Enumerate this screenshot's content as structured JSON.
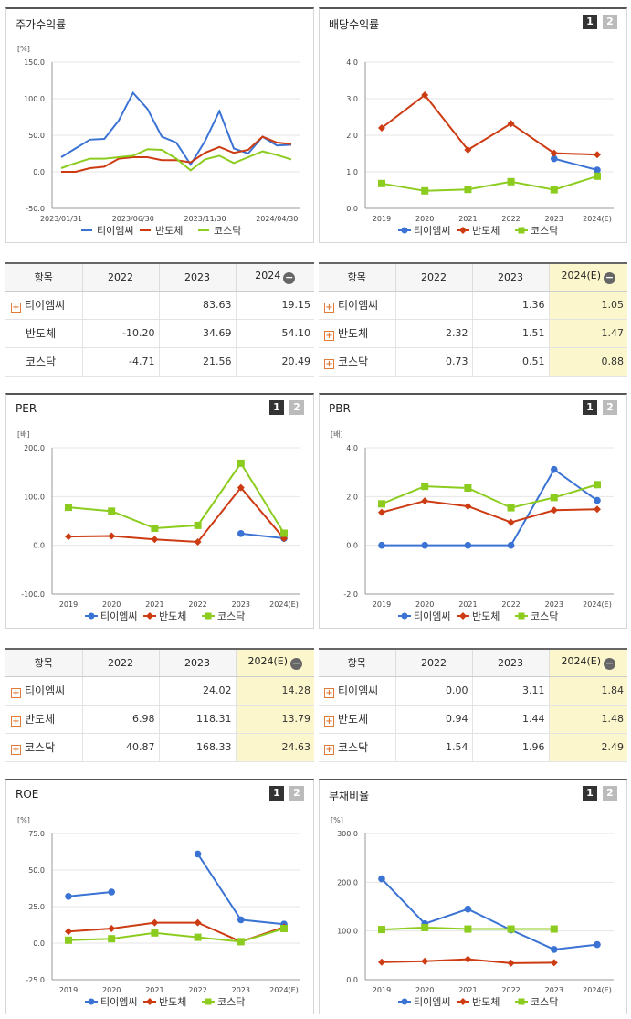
{
  "colors": {
    "timc": "#3a73d4",
    "semi": "#cc3b12",
    "kosdaq": "#8ccc1e"
  },
  "legend": [
    "티이엠씨",
    "반도체",
    "코스닥"
  ],
  "pager": [
    "1",
    "2"
  ],
  "charts": {
    "stock": {
      "title": "주가수익률",
      "unit": "[%]",
      "chart_data": {
        "type": "line",
        "x": [
          "2023/01/31",
          "2023/02/28",
          "2023/03/31",
          "2023/04/30",
          "2023/05/31",
          "2023/06/30",
          "2023/07/31",
          "2023/08/31",
          "2023/09/30",
          "2023/10/31",
          "2023/11/30",
          "2023/12/31",
          "2024/01/31",
          "2024/02/29",
          "2024/03/31",
          "2024/04/30",
          "2024/05/31"
        ],
        "xticks": [
          "2023/01/31",
          "2023/06/30",
          "2023/11/30",
          "2024/04/30"
        ],
        "ylim": [
          -50,
          150
        ],
        "yticks": [
          "-50.0",
          "0.0",
          "50.0",
          "100.0",
          "150.0"
        ],
        "series": [
          {
            "name": "티이엠씨",
            "values": [
              20,
              32,
              44,
              45,
              70,
              108,
              86,
              48,
              40,
              10,
              42,
              83,
              32,
              25,
              48,
              36,
              37
            ]
          },
          {
            "name": "반도체",
            "values": [
              0,
              0,
              5,
              7,
              18,
              20,
              20,
              16,
              16,
              13,
              26,
              34,
              26,
              30,
              48,
              40,
              38
            ]
          },
          {
            "name": "코스닥",
            "values": [
              5,
              12,
              18,
              18,
              20,
              22,
              31,
              30,
              18,
              2,
              17,
              22,
              12,
              20,
              28,
              23,
              17
            ]
          }
        ]
      }
    },
    "dividend": {
      "title": "배당수익률",
      "unit": "",
      "chart_data": {
        "type": "line",
        "x": [
          "2019",
          "2020",
          "2021",
          "2022",
          "2023",
          "2024(E)"
        ],
        "ylim": [
          0,
          4
        ],
        "yticks": [
          "0.0",
          "1.0",
          "2.0",
          "3.0",
          "4.0"
        ],
        "series": [
          {
            "name": "티이엠씨",
            "values": [
              null,
              null,
              null,
              null,
              1.36,
              1.05
            ]
          },
          {
            "name": "반도체",
            "values": [
              2.2,
              3.1,
              1.6,
              2.32,
              1.51,
              1.47
            ]
          },
          {
            "name": "코스닥",
            "values": [
              0.68,
              0.48,
              0.52,
              0.73,
              0.51,
              0.88
            ]
          }
        ]
      }
    },
    "per": {
      "title": "PER",
      "unit": "[배]",
      "chart_data": {
        "type": "line",
        "x": [
          "2019",
          "2020",
          "2021",
          "2022",
          "2023",
          "2024(E)"
        ],
        "ylim": [
          -100,
          200
        ],
        "yticks": [
          "-100.0",
          "0.0",
          "100.0",
          "200.0"
        ],
        "series": [
          {
            "name": "티이엠씨",
            "values": [
              null,
              null,
              null,
              null,
              24.02,
              14.28
            ]
          },
          {
            "name": "반도체",
            "values": [
              18,
              19,
              12,
              6.98,
              118.31,
              13.79
            ]
          },
          {
            "name": "코스닥",
            "values": [
              78,
              70,
              35,
              40.87,
              168.33,
              24.63
            ]
          }
        ]
      }
    },
    "pbr": {
      "title": "PBR",
      "unit": "[배]",
      "chart_data": {
        "type": "line",
        "x": [
          "2019",
          "2020",
          "2021",
          "2022",
          "2023",
          "2024(E)"
        ],
        "ylim": [
          -2,
          4
        ],
        "yticks": [
          "-2.0",
          "0.0",
          "2.0",
          "4.0"
        ],
        "series": [
          {
            "name": "티이엠씨",
            "values": [
              0,
              0,
              0,
              0,
              3.11,
              1.84
            ]
          },
          {
            "name": "반도체",
            "values": [
              1.35,
              1.82,
              1.6,
              0.94,
              1.44,
              1.48
            ]
          },
          {
            "name": "코스닥",
            "values": [
              1.7,
              2.42,
              2.35,
              1.54,
              1.96,
              2.49
            ]
          }
        ]
      }
    },
    "roe": {
      "title": "ROE",
      "unit": "[%]",
      "chart_data": {
        "type": "line",
        "x": [
          "2019",
          "2020",
          "2021",
          "2022",
          "2023",
          "2024(E)"
        ],
        "ylim": [
          -25,
          75
        ],
        "yticks": [
          "-25.0",
          "0.0",
          "25.0",
          "50.0",
          "75.0"
        ],
        "series": [
          {
            "name": "티이엠씨",
            "values": [
              32,
              35,
              null,
              61,
              16,
              13
            ]
          },
          {
            "name": "반도체",
            "values": [
              8,
              10,
              14,
              14,
              1,
              11
            ]
          },
          {
            "name": "코스닥",
            "values": [
              2,
              3,
              7,
              4,
              1,
              10
            ]
          }
        ]
      }
    },
    "debt": {
      "title": "부채비율",
      "unit": "[%]",
      "chart_data": {
        "type": "line",
        "x": [
          "2019",
          "2020",
          "2021",
          "2022",
          "2023",
          "2024(E)"
        ],
        "ylim": [
          0,
          300
        ],
        "yticks": [
          "0.0",
          "100.0",
          "200.0",
          "300.0"
        ],
        "series": [
          {
            "name": "티이엠씨",
            "values": [
              207,
              115,
              145,
              102,
              62,
              72
            ]
          },
          {
            "name": "반도체",
            "values": [
              36,
              38,
              42,
              34,
              35,
              null
            ]
          },
          {
            "name": "코스닥",
            "values": [
              103,
              107,
              104,
              104,
              104,
              null
            ]
          }
        ]
      }
    }
  },
  "tables": {
    "stock": {
      "headers": [
        "항목",
        "2022",
        "2023",
        "2024"
      ],
      "rows": [
        {
          "name": "티이엠씨",
          "plus": true,
          "v": [
            "",
            "83.63",
            "19.15"
          ]
        },
        {
          "name": "반도체",
          "plus": false,
          "v": [
            "-10.20",
            "34.69",
            "54.10"
          ]
        },
        {
          "name": "코스닥",
          "plus": false,
          "v": [
            "-4.71",
            "21.56",
            "20.49"
          ]
        }
      ]
    },
    "dividend": {
      "headers": [
        "항목",
        "2022",
        "2023",
        "2024(E)"
      ],
      "rows": [
        {
          "name": "티이엠씨",
          "plus": true,
          "v": [
            "",
            "1.36",
            "1.05"
          ]
        },
        {
          "name": "반도체",
          "plus": true,
          "v": [
            "2.32",
            "1.51",
            "1.47"
          ]
        },
        {
          "name": "코스닥",
          "plus": true,
          "v": [
            "0.73",
            "0.51",
            "0.88"
          ]
        }
      ]
    },
    "per": {
      "headers": [
        "항목",
        "2022",
        "2023",
        "2024(E)"
      ],
      "rows": [
        {
          "name": "티이엠씨",
          "plus": true,
          "v": [
            "",
            "24.02",
            "14.28"
          ]
        },
        {
          "name": "반도체",
          "plus": true,
          "v": [
            "6.98",
            "118.31",
            "13.79"
          ]
        },
        {
          "name": "코스닥",
          "plus": true,
          "v": [
            "40.87",
            "168.33",
            "24.63"
          ]
        }
      ]
    },
    "pbr": {
      "headers": [
        "항목",
        "2022",
        "2023",
        "2024(E)"
      ],
      "rows": [
        {
          "name": "티이엠씨",
          "plus": true,
          "v": [
            "0.00",
            "3.11",
            "1.84"
          ]
        },
        {
          "name": "반도체",
          "plus": true,
          "v": [
            "0.94",
            "1.44",
            "1.48"
          ]
        },
        {
          "name": "코스닥",
          "plus": true,
          "v": [
            "1.54",
            "1.96",
            "2.49"
          ]
        }
      ]
    }
  }
}
